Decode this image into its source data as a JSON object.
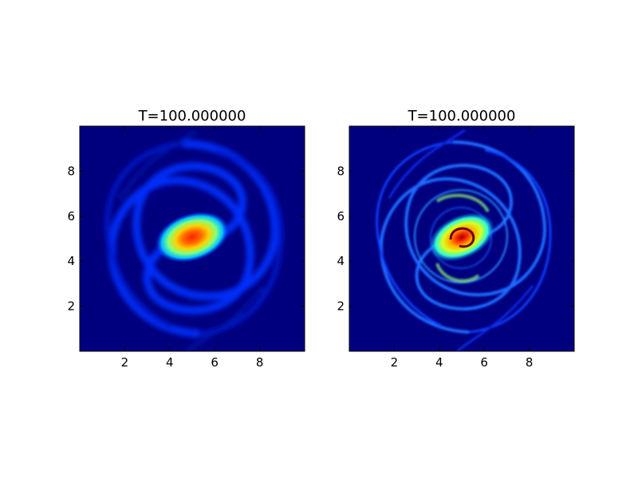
{
  "chart_data": [
    {
      "type": "heatmap",
      "title": "T=100.000000",
      "xlabel": "",
      "ylabel": "",
      "xlim": [
        0,
        10
      ],
      "ylim": [
        0,
        10
      ],
      "xticks": [
        2,
        4,
        6,
        8
      ],
      "yticks": [
        2,
        4,
        6,
        8
      ],
      "colormap": "jet",
      "background_color": "#00007f",
      "description_values": {
        "core_center": [
          5.0,
          5.1
        ],
        "core_peak": 0.95,
        "spiral_arm_level": 0.25
      },
      "resolution": "coarse"
    },
    {
      "type": "heatmap",
      "title": "T=100.000000",
      "xlabel": "",
      "ylabel": "",
      "xlim": [
        0,
        10
      ],
      "ylim": [
        0,
        10
      ],
      "xticks": [
        2,
        4,
        6,
        8
      ],
      "yticks": [
        2,
        4,
        6,
        8
      ],
      "colormap": "jet",
      "background_color": "#00007f",
      "description_values": {
        "core_center": [
          5.0,
          5.1
        ],
        "core_peak": 1.0,
        "spiral_arm_level": 0.3
      },
      "resolution": "fine"
    }
  ]
}
